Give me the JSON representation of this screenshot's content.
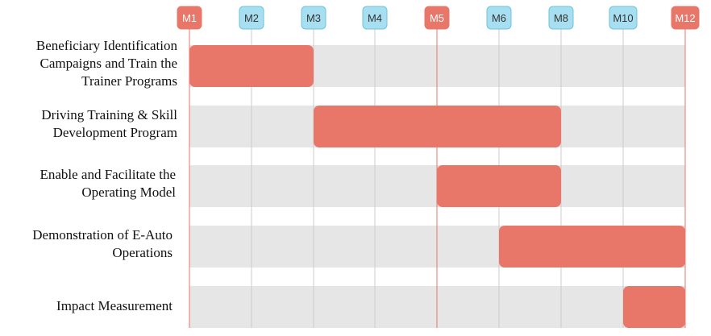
{
  "chart_data": {
    "type": "gantt",
    "milestones": [
      {
        "label": "M1",
        "month": 1,
        "highlight": true
      },
      {
        "label": "M2",
        "month": 2,
        "highlight": false
      },
      {
        "label": "M3",
        "month": 3,
        "highlight": false
      },
      {
        "label": "M4",
        "month": 4,
        "highlight": false
      },
      {
        "label": "M5",
        "month": 5,
        "highlight": true
      },
      {
        "label": "M6",
        "month": 6,
        "highlight": false
      },
      {
        "label": "M8",
        "month": 8,
        "highlight": false
      },
      {
        "label": "M10",
        "month": 10,
        "highlight": false
      },
      {
        "label": "M12",
        "month": 12,
        "highlight": true
      }
    ],
    "tasks": [
      {
        "label": "Beneficiary Identification\nCampaigns and Train the\nTrainer Programs",
        "start": "M1",
        "end": "M3"
      },
      {
        "label": "Driving Training & Skill\nDevelopment Program",
        "start": "M3",
        "end": "M8"
      },
      {
        "label": "Enable and Facilitate the\nOperating Model",
        "start": "M5",
        "end": "M8"
      },
      {
        "label": "Demonstration of E-Auto\nOperations",
        "start": "M6",
        "end": "M12"
      },
      {
        "label": "Impact Measurement",
        "start": "M10",
        "end": "M12"
      }
    ],
    "colors": {
      "bar": "#e8776a",
      "row_band": "#e6e6e6",
      "highlight_marker": "#e8776a",
      "highlight_marker_text": "#ffffff",
      "normal_marker": "#a8dff0",
      "normal_marker_border": "#6cc3e0",
      "normal_marker_text": "#333333",
      "highlight_line": "#e8776a",
      "normal_line": "#cccccc"
    }
  }
}
